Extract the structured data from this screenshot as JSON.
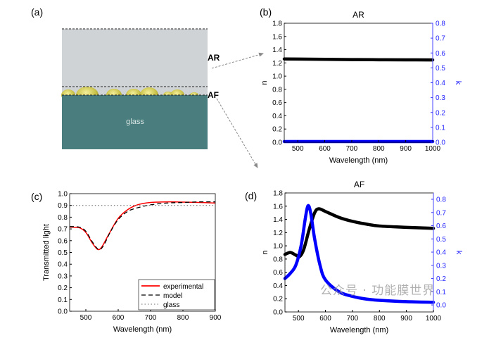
{
  "panel_labels": {
    "a": "(a)",
    "b": "(b)",
    "c": "(c)",
    "d": "(d)"
  },
  "diagram": {
    "layer_top_label": "AR",
    "layer_mid_label": "AF",
    "substrate_label": "glass",
    "colors": {
      "ar_layer": "#cfd3d5",
      "glass": "#4a7d7d",
      "particles": "#c9c24a"
    }
  },
  "watermark": "公众号 · 功能膜世界",
  "chart_data": [
    {
      "id": "b",
      "type": "scatter",
      "title": "AR",
      "xlabel": "Wavelength (nm)",
      "ylabel": "n",
      "y2label": "k",
      "xlim": [
        450,
        1000
      ],
      "ylim": [
        0,
        1.8
      ],
      "y2lim": [
        0,
        0.8
      ],
      "xticks": [
        500,
        600,
        700,
        800,
        900,
        1000
      ],
      "yticks": [
        "0.0",
        "0.2",
        "0.4",
        "0.6",
        "0.8",
        "1.0",
        "1.2",
        "1.4",
        "1.6",
        "1.8"
      ],
      "y2ticks": [
        "0.0",
        "0.1",
        "0.2",
        "0.3",
        "0.4",
        "0.5",
        "0.6",
        "0.7",
        "0.8"
      ],
      "series": [
        {
          "axis": "left",
          "color": "#000000",
          "x": [
            450,
            500,
            600,
            700,
            800,
            900,
            1000
          ],
          "y": [
            1.26,
            1.258,
            1.254,
            1.25,
            1.248,
            1.246,
            1.245
          ]
        },
        {
          "axis": "right",
          "color": "#0000ff",
          "x": [
            450,
            600,
            800,
            1000
          ],
          "y": [
            0.005,
            0.005,
            0.005,
            0.005
          ]
        }
      ]
    },
    {
      "id": "c",
      "type": "line",
      "xlabel": "Wavelength (nm)",
      "ylabel": "Transmitted light",
      "xlim": [
        450,
        900
      ],
      "ylim": [
        0,
        1.0
      ],
      "xticks": [
        500,
        600,
        700,
        800,
        900
      ],
      "yticks": [
        "0.0",
        "0.1",
        "0.2",
        "0.3",
        "0.4",
        "0.5",
        "0.6",
        "0.7",
        "0.8",
        "0.9",
        "1.0"
      ],
      "legend": "bottom-right",
      "series": [
        {
          "name": "experimental",
          "color": "#ff0000",
          "style": "solid",
          "x": [
            450,
            480,
            500,
            520,
            537,
            550,
            570,
            600,
            630,
            660,
            700,
            750,
            800,
            850,
            900
          ],
          "y": [
            0.715,
            0.71,
            0.67,
            0.58,
            0.525,
            0.55,
            0.65,
            0.79,
            0.865,
            0.905,
            0.925,
            0.93,
            0.928,
            0.925,
            0.92
          ]
        },
        {
          "name": "model",
          "color": "#000000",
          "style": "dashed",
          "x": [
            450,
            480,
            500,
            520,
            540,
            555,
            575,
            600,
            630,
            660,
            700,
            750,
            800,
            850,
            900
          ],
          "y": [
            0.72,
            0.715,
            0.68,
            0.59,
            0.525,
            0.56,
            0.67,
            0.78,
            0.85,
            0.88,
            0.905,
            0.92,
            0.925,
            0.93,
            0.93
          ]
        },
        {
          "name": "glass",
          "color": "#888888",
          "style": "dotted",
          "x": [
            450,
            900
          ],
          "y": [
            0.9,
            0.9
          ]
        }
      ]
    },
    {
      "id": "d",
      "type": "scatter",
      "title": "AF",
      "xlabel": "Wavelength (nm)",
      "ylabel": "n",
      "y2label": "k",
      "xlim": [
        450,
        1000
      ],
      "ylim": [
        0,
        1.8
      ],
      "y2lim": [
        -0.053,
        0.848
      ],
      "xticks": [
        500,
        600,
        700,
        800,
        900,
        1000
      ],
      "yticks": [
        "0.0",
        "0.2",
        "0.4",
        "0.6",
        "0.8",
        "1.0",
        "1.2",
        "1.4",
        "1.6",
        "1.8"
      ],
      "y2ticks": [
        "0.0",
        "0.1",
        "0.2",
        "0.3",
        "0.4",
        "0.5",
        "0.6",
        "0.7",
        "0.8"
      ],
      "series": [
        {
          "axis": "left",
          "color": "#000000",
          "x": [
            450,
            470,
            490,
            505,
            520,
            540,
            560,
            575,
            600,
            650,
            700,
            750,
            800,
            900,
            1000
          ],
          "y": [
            0.87,
            0.9,
            0.86,
            0.84,
            0.95,
            1.25,
            1.5,
            1.56,
            1.52,
            1.43,
            1.37,
            1.33,
            1.3,
            1.28,
            1.265
          ]
        },
        {
          "axis": "right",
          "color": "#0000ff",
          "x": [
            450,
            470,
            490,
            510,
            525,
            535,
            545,
            560,
            580,
            600,
            650,
            700,
            750,
            800,
            900,
            1000
          ],
          "y": [
            0.2,
            0.24,
            0.3,
            0.45,
            0.65,
            0.75,
            0.7,
            0.5,
            0.3,
            0.19,
            0.1,
            0.065,
            0.045,
            0.035,
            0.025,
            0.02
          ]
        }
      ]
    }
  ]
}
